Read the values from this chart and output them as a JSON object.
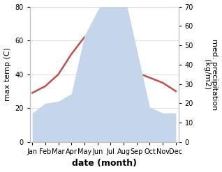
{
  "months": [
    "Jan",
    "Feb",
    "Mar",
    "Apr",
    "May",
    "Jun",
    "Jul",
    "Aug",
    "Sep",
    "Oct",
    "Nov",
    "Dec"
  ],
  "temperature": [
    29,
    33,
    40,
    52,
    62,
    65,
    48,
    42,
    41,
    38,
    35,
    30
  ],
  "precipitation": [
    15,
    20,
    21,
    25,
    55,
    68,
    80,
    78,
    48,
    18,
    15,
    15
  ],
  "temp_color": "#c0504d",
  "precip_fill_color": "#c5d5ea",
  "ylim_left": [
    0,
    80
  ],
  "ylim_right": [
    0,
    70
  ],
  "xlabel": "date (month)",
  "ylabel_left": "max temp (C)",
  "ylabel_right": "med. precipitation\n(kg/m2)",
  "bg_color": "#ffffff",
  "label_fontsize": 8,
  "tick_fontsize": 7
}
